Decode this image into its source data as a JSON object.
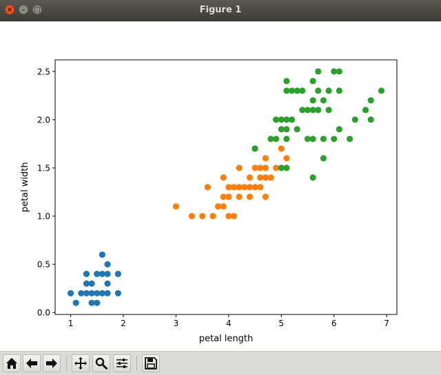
{
  "window": {
    "title": "Figure 1"
  },
  "toolbar": {
    "buttons": [
      {
        "name": "home-button",
        "icon": "home-icon"
      },
      {
        "name": "back-button",
        "icon": "arrow-left-icon"
      },
      {
        "name": "forward-button",
        "icon": "arrow-right-icon"
      },
      {
        "name": "pan-button",
        "icon": "move-icon"
      },
      {
        "name": "zoom-button",
        "icon": "magnifier-icon"
      },
      {
        "name": "configure-subplots-button",
        "icon": "sliders-icon"
      },
      {
        "name": "save-button",
        "icon": "floppy-disk-icon"
      }
    ]
  },
  "chart_data": {
    "type": "scatter",
    "title": "",
    "xlabel": "petal length",
    "ylabel": "petal width",
    "xlim": [
      0.705,
      7.195
    ],
    "ylim": [
      -0.02,
      2.62
    ],
    "xticks": [
      1,
      2,
      3,
      4,
      5,
      6,
      7
    ],
    "xtick_labels": [
      "1",
      "2",
      "3",
      "4",
      "5",
      "6",
      "7"
    ],
    "yticks": [
      0.0,
      0.5,
      1.0,
      1.5,
      2.0,
      2.5
    ],
    "ytick_labels": [
      "0.0",
      "0.5",
      "1.0",
      "1.5",
      "2.0",
      "2.5"
    ],
    "grid": false,
    "legend": "none",
    "series": [
      {
        "color": "#1f77b4",
        "points": [
          [
            1.0,
            0.2
          ],
          [
            1.1,
            0.1
          ],
          [
            1.2,
            0.2
          ],
          [
            1.3,
            0.2
          ],
          [
            1.3,
            0.3
          ],
          [
            1.3,
            0.4
          ],
          [
            1.4,
            0.1
          ],
          [
            1.4,
            0.2
          ],
          [
            1.4,
            0.3
          ],
          [
            1.5,
            0.1
          ],
          [
            1.5,
            0.2
          ],
          [
            1.5,
            0.4
          ],
          [
            1.6,
            0.2
          ],
          [
            1.6,
            0.4
          ],
          [
            1.6,
            0.6
          ],
          [
            1.7,
            0.2
          ],
          [
            1.7,
            0.3
          ],
          [
            1.7,
            0.4
          ],
          [
            1.7,
            0.5
          ],
          [
            1.9,
            0.2
          ],
          [
            1.9,
            0.4
          ]
        ]
      },
      {
        "color": "#ff7f0e",
        "points": [
          [
            3.0,
            1.1
          ],
          [
            3.3,
            1.0
          ],
          [
            3.5,
            1.0
          ],
          [
            3.6,
            1.3
          ],
          [
            3.7,
            1.0
          ],
          [
            3.8,
            1.1
          ],
          [
            3.9,
            1.1
          ],
          [
            3.9,
            1.2
          ],
          [
            3.9,
            1.4
          ],
          [
            4.0,
            1.0
          ],
          [
            4.0,
            1.2
          ],
          [
            4.0,
            1.3
          ],
          [
            4.1,
            1.0
          ],
          [
            4.1,
            1.3
          ],
          [
            4.2,
            1.2
          ],
          [
            4.2,
            1.3
          ],
          [
            4.2,
            1.5
          ],
          [
            4.3,
            1.3
          ],
          [
            4.4,
            1.2
          ],
          [
            4.4,
            1.3
          ],
          [
            4.4,
            1.4
          ],
          [
            4.5,
            1.3
          ],
          [
            4.5,
            1.5
          ],
          [
            4.5,
            1.7
          ],
          [
            4.6,
            1.3
          ],
          [
            4.6,
            1.4
          ],
          [
            4.6,
            1.5
          ],
          [
            4.7,
            1.2
          ],
          [
            4.7,
            1.4
          ],
          [
            4.7,
            1.5
          ],
          [
            4.7,
            1.6
          ],
          [
            4.8,
            1.4
          ],
          [
            4.8,
            1.8
          ],
          [
            4.9,
            1.5
          ],
          [
            5.0,
            1.7
          ],
          [
            5.1,
            1.6
          ]
        ]
      },
      {
        "color": "#2ca02c",
        "points": [
          [
            4.5,
            1.7
          ],
          [
            4.8,
            1.8
          ],
          [
            4.9,
            1.8
          ],
          [
            4.9,
            2.0
          ],
          [
            5.0,
            1.5
          ],
          [
            5.0,
            1.9
          ],
          [
            5.0,
            2.0
          ],
          [
            5.1,
            1.5
          ],
          [
            5.1,
            1.8
          ],
          [
            5.1,
            1.9
          ],
          [
            5.1,
            2.0
          ],
          [
            5.1,
            2.3
          ],
          [
            5.1,
            2.4
          ],
          [
            5.2,
            2.0
          ],
          [
            5.2,
            2.3
          ],
          [
            5.3,
            1.9
          ],
          [
            5.3,
            2.3
          ],
          [
            5.4,
            2.1
          ],
          [
            5.4,
            2.3
          ],
          [
            5.5,
            1.8
          ],
          [
            5.5,
            2.1
          ],
          [
            5.6,
            1.4
          ],
          [
            5.6,
            1.8
          ],
          [
            5.6,
            2.1
          ],
          [
            5.6,
            2.2
          ],
          [
            5.6,
            2.4
          ],
          [
            5.7,
            2.1
          ],
          [
            5.7,
            2.3
          ],
          [
            5.7,
            2.5
          ],
          [
            5.8,
            1.6
          ],
          [
            5.8,
            1.8
          ],
          [
            5.8,
            2.2
          ],
          [
            5.9,
            2.1
          ],
          [
            5.9,
            2.3
          ],
          [
            6.0,
            1.8
          ],
          [
            6.0,
            2.5
          ],
          [
            6.1,
            1.9
          ],
          [
            6.1,
            2.3
          ],
          [
            6.1,
            2.5
          ],
          [
            6.3,
            1.8
          ],
          [
            6.4,
            2.0
          ],
          [
            6.6,
            2.1
          ],
          [
            6.7,
            2.0
          ],
          [
            6.7,
            2.2
          ],
          [
            6.9,
            2.3
          ]
        ]
      }
    ]
  }
}
